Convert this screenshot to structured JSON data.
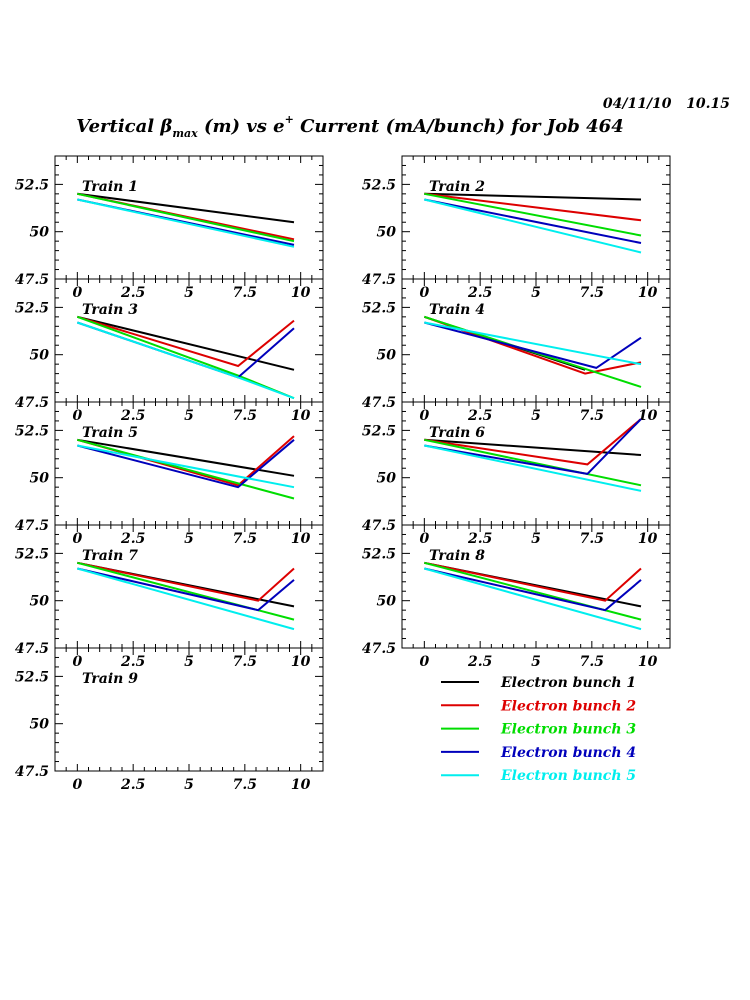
{
  "header": {
    "timestamp": "04/11/10   10.15",
    "title_pre": "Vertical ",
    "title_beta": "β",
    "title_sub": "max",
    "title_mid": " (m) vs e",
    "title_sup": "+",
    "title_post": " Current (mA/bunch) for Job 464"
  },
  "chart_data": {
    "type": "line",
    "xlim": [
      -1,
      11
    ],
    "ylim": [
      47.5,
      54
    ],
    "x_ticks": [
      "0",
      "2.5",
      "5",
      "7.5",
      "10"
    ],
    "y_ticks": [
      "47.5",
      "50",
      "52.5"
    ],
    "legend": [
      {
        "name": "Electron bunch 1",
        "color": "#000000"
      },
      {
        "name": "Electron bunch 2",
        "color": "#dd0000"
      },
      {
        "name": "Electron bunch 3",
        "color": "#00dd00"
      },
      {
        "name": "Electron bunch 4",
        "color": "#0000bb"
      },
      {
        "name": "Electron bunch 5",
        "color": "#00eeee"
      }
    ],
    "panels": [
      {
        "label": "Train 1",
        "series": [
          [
            [
              0,
              52.0
            ],
            [
              9.7,
              50.5
            ]
          ],
          [
            [
              0,
              52.0
            ],
            [
              9.7,
              49.6
            ]
          ],
          [
            [
              0,
              52.0
            ],
            [
              9.7,
              49.5
            ]
          ],
          [
            [
              0,
              51.7
            ],
            [
              9.7,
              49.3
            ]
          ],
          [
            [
              0,
              51.7
            ],
            [
              9.7,
              49.2
            ]
          ]
        ]
      },
      {
        "label": "Train 2",
        "series": [
          [
            [
              0,
              52.0
            ],
            [
              9.7,
              51.7
            ]
          ],
          [
            [
              0,
              52.0
            ],
            [
              9.7,
              50.6
            ]
          ],
          [
            [
              0,
              52.0
            ],
            [
              9.7,
              49.8
            ]
          ],
          [
            [
              0,
              51.7
            ],
            [
              9.7,
              49.4
            ]
          ],
          [
            [
              0,
              51.7
            ],
            [
              9.7,
              48.9
            ]
          ]
        ]
      },
      {
        "label": "Train 3",
        "series": [
          [
            [
              0,
              52.0
            ],
            [
              9.7,
              49.2
            ]
          ],
          [
            [
              0,
              52.0
            ],
            [
              7.2,
              49.4
            ],
            [
              9.7,
              51.8
            ]
          ],
          [
            [
              0,
              52.0
            ],
            [
              7.2,
              48.9
            ],
            [
              9.7,
              47.7
            ]
          ],
          [
            [
              0,
              51.7
            ],
            [
              7.2,
              48.8
            ],
            [
              9.7,
              51.4
            ]
          ],
          [
            [
              0,
              51.7
            ],
            [
              7.2,
              48.8
            ],
            [
              9.7,
              47.7
            ]
          ]
        ]
      },
      {
        "label": "Train 4",
        "series": [
          [
            [
              0,
              52.0
            ],
            [
              7.2,
              49.2
            ]
          ],
          [
            [
              0,
              52.0
            ],
            [
              7.2,
              49.0
            ],
            [
              9.7,
              49.6
            ]
          ],
          [
            [
              0,
              52.0
            ],
            [
              9.7,
              48.3
            ]
          ],
          [
            [
              0,
              51.7
            ],
            [
              7.7,
              49.3
            ],
            [
              9.7,
              50.9
            ]
          ],
          [
            [
              0,
              51.7
            ],
            [
              9.7,
              49.5
            ]
          ]
        ]
      },
      {
        "label": "Train 5",
        "series": [
          [
            [
              0,
              52.0
            ],
            [
              9.7,
              50.1
            ]
          ],
          [
            [
              0,
              52.0
            ],
            [
              7.2,
              49.6
            ],
            [
              9.7,
              52.2
            ]
          ],
          [
            [
              0,
              52.0
            ],
            [
              9.7,
              48.9
            ]
          ],
          [
            [
              0,
              51.7
            ],
            [
              7.2,
              49.5
            ],
            [
              9.7,
              52.0
            ]
          ],
          [
            [
              0,
              51.7
            ],
            [
              9.7,
              49.5
            ]
          ]
        ]
      },
      {
        "label": "Train 6",
        "series": [
          [
            [
              0,
              52.0
            ],
            [
              9.7,
              51.2
            ]
          ],
          [
            [
              0,
              52.0
            ],
            [
              7.3,
              50.7
            ],
            [
              9.7,
              53.1
            ]
          ],
          [
            [
              0,
              52.0
            ],
            [
              9.7,
              49.6
            ]
          ],
          [
            [
              0,
              51.7
            ],
            [
              7.3,
              50.2
            ],
            [
              9.7,
              53.1
            ]
          ],
          [
            [
              0,
              51.7
            ],
            [
              9.7,
              49.3
            ]
          ]
        ]
      },
      {
        "label": "Train 7",
        "series": [
          [
            [
              0,
              52.0
            ],
            [
              9.7,
              49.7
            ]
          ],
          [
            [
              0,
              52.0
            ],
            [
              8.1,
              50.0
            ],
            [
              9.7,
              51.7
            ]
          ],
          [
            [
              0,
              52.0
            ],
            [
              9.7,
              49.0
            ]
          ],
          [
            [
              0,
              51.7
            ],
            [
              8.1,
              49.5
            ],
            [
              9.7,
              51.1
            ]
          ],
          [
            [
              0,
              51.7
            ],
            [
              9.7,
              48.5
            ]
          ]
        ]
      },
      {
        "label": "Train 8",
        "series": [
          [
            [
              0,
              52.0
            ],
            [
              9.7,
              49.7
            ]
          ],
          [
            [
              0,
              52.0
            ],
            [
              8.1,
              50.0
            ],
            [
              9.7,
              51.7
            ]
          ],
          [
            [
              0,
              52.0
            ],
            [
              9.7,
              49.0
            ]
          ],
          [
            [
              0,
              51.7
            ],
            [
              8.1,
              49.5
            ],
            [
              9.7,
              51.1
            ]
          ],
          [
            [
              0,
              51.7
            ],
            [
              9.7,
              48.5
            ]
          ]
        ]
      },
      {
        "label": "Train 9",
        "series": []
      }
    ]
  }
}
